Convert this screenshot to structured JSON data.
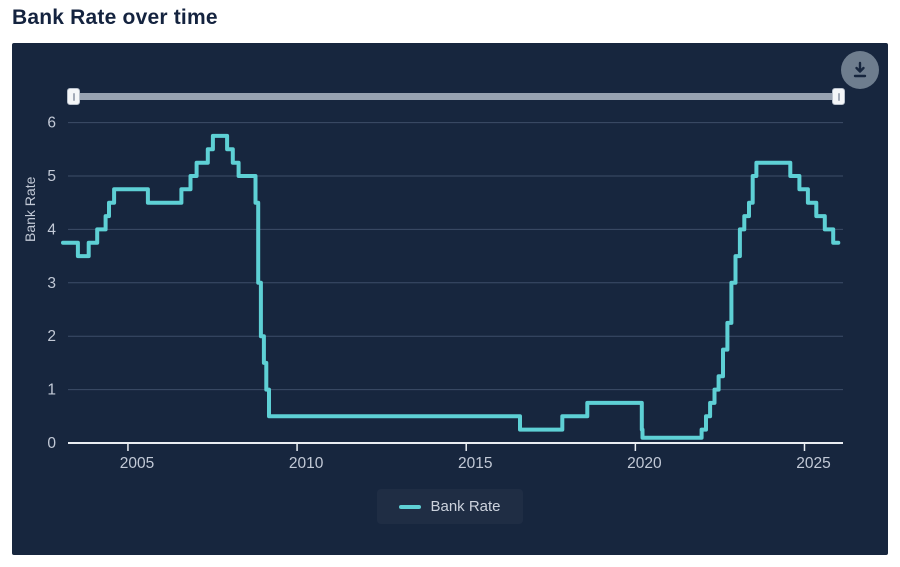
{
  "page": {
    "title": "Bank Rate over time"
  },
  "theme": {
    "panel_background": "#17263e",
    "grid_color": "#3d4d68",
    "axis_color": "#e9edf2",
    "tick_label_color": "#c2c9d6",
    "title_color": "#14233f",
    "line_color": "#5ed0d5",
    "slider_track_color": "#98a2b1",
    "download_button_color": "#6e7d8e"
  },
  "controls": {
    "download_button": {
      "icon": "download-icon"
    },
    "range_slider": {
      "min_position": "start",
      "max_position": "end"
    }
  },
  "chart_data": {
    "type": "line",
    "step": true,
    "title": "Bank Rate over time",
    "xlabel": "",
    "ylabel": "Bank Rate",
    "xlim": [
      2003.08,
      2026.05
    ],
    "ylim": [
      0,
      6.4
    ],
    "xticks": [
      2005,
      2010,
      2015,
      2020,
      2025
    ],
    "yticks": [
      0,
      1,
      2,
      3,
      4,
      5,
      6
    ],
    "grid": "horizontal",
    "legend_position": "bottom",
    "series": [
      {
        "name": "Bank Rate",
        "color": "#5ed0d5",
        "points": [
          [
            2003.08,
            3.75
          ],
          [
            2003.52,
            3.5
          ],
          [
            2003.84,
            3.75
          ],
          [
            2004.09,
            4.0
          ],
          [
            2004.34,
            4.25
          ],
          [
            2004.44,
            4.5
          ],
          [
            2004.59,
            4.75
          ],
          [
            2005.59,
            4.5
          ],
          [
            2006.58,
            4.75
          ],
          [
            2006.85,
            5.0
          ],
          [
            2007.03,
            5.25
          ],
          [
            2007.36,
            5.5
          ],
          [
            2007.51,
            5.75
          ],
          [
            2007.93,
            5.5
          ],
          [
            2008.1,
            5.25
          ],
          [
            2008.27,
            5.0
          ],
          [
            2008.77,
            4.5
          ],
          [
            2008.85,
            3.0
          ],
          [
            2008.93,
            2.0
          ],
          [
            2009.02,
            1.5
          ],
          [
            2009.09,
            1.0
          ],
          [
            2009.17,
            0.5
          ],
          [
            2016.59,
            0.25
          ],
          [
            2017.84,
            0.5
          ],
          [
            2018.58,
            0.75
          ],
          [
            2020.19,
            0.25
          ],
          [
            2020.21,
            0.1
          ],
          [
            2021.96,
            0.25
          ],
          [
            2022.09,
            0.5
          ],
          [
            2022.21,
            0.75
          ],
          [
            2022.34,
            1.0
          ],
          [
            2022.46,
            1.25
          ],
          [
            2022.59,
            1.75
          ],
          [
            2022.72,
            2.25
          ],
          [
            2022.84,
            3.0
          ],
          [
            2022.96,
            3.5
          ],
          [
            2023.09,
            4.0
          ],
          [
            2023.22,
            4.25
          ],
          [
            2023.36,
            4.5
          ],
          [
            2023.47,
            5.0
          ],
          [
            2023.58,
            5.25
          ],
          [
            2024.58,
            5.0
          ],
          [
            2024.85,
            4.75
          ],
          [
            2025.1,
            4.5
          ],
          [
            2025.35,
            4.25
          ],
          [
            2025.6,
            4.0
          ],
          [
            2025.85,
            3.75
          ],
          [
            2026.0,
            3.75
          ]
        ]
      }
    ]
  }
}
